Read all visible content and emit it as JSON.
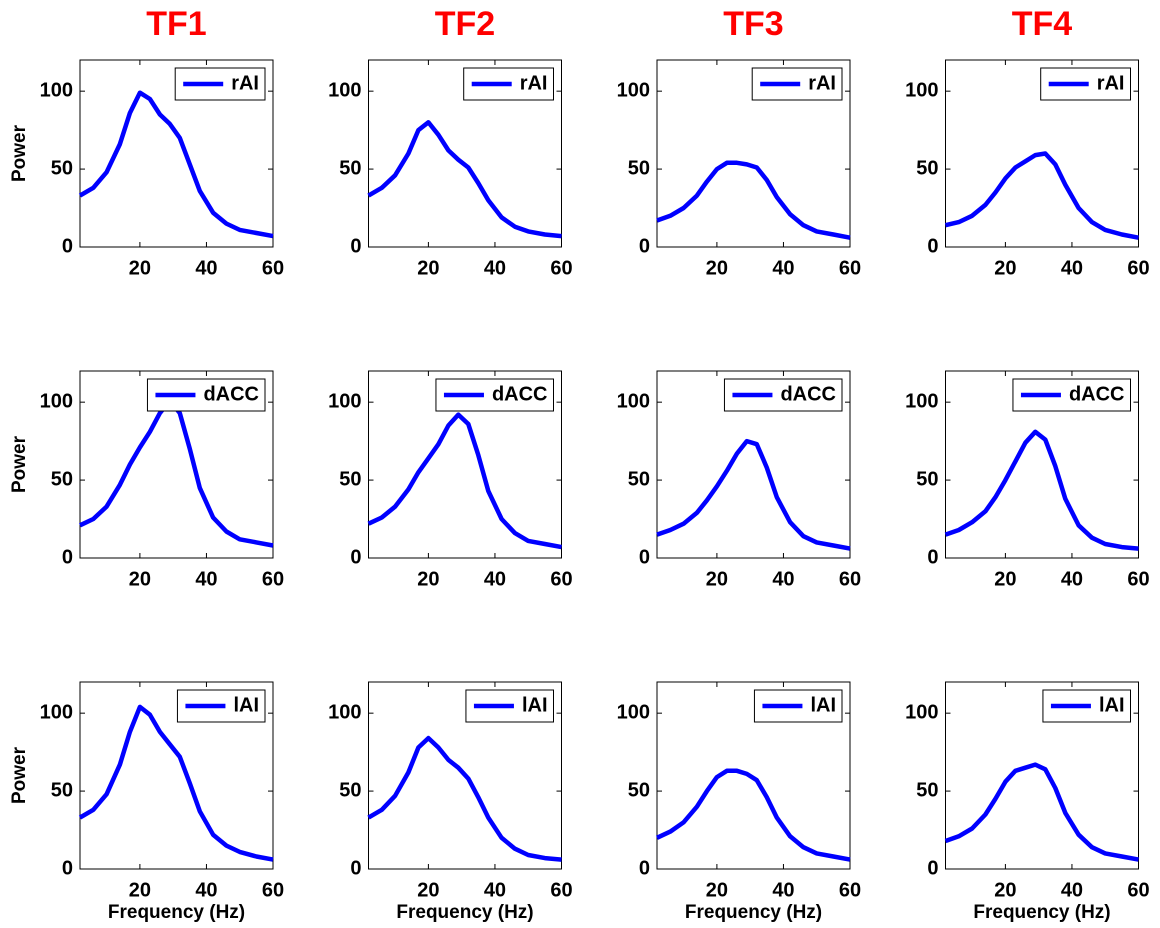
{
  "chart_data": [
    {
      "type": "line",
      "title": "TF1",
      "ylabel": "Power",
      "x": [
        2,
        6,
        10,
        14,
        17,
        20,
        23,
        26,
        29,
        32,
        35,
        38,
        42,
        46,
        50,
        55,
        60
      ],
      "series": [
        {
          "name": "rAI",
          "color": "#0000ff",
          "values": [
            33,
            38,
            48,
            66,
            86,
            99,
            95,
            85,
            79,
            70,
            53,
            36,
            22,
            15,
            11,
            9,
            7
          ]
        }
      ],
      "xlim": [
        2,
        60
      ],
      "xticks": [
        20,
        40,
        60
      ],
      "ylim": [
        0,
        120
      ],
      "yticks": [
        0,
        50,
        100
      ],
      "legend": "upper right",
      "grid": false
    },
    {
      "type": "line",
      "title": "TF2",
      "x": [
        2,
        6,
        10,
        14,
        17,
        20,
        23,
        26,
        29,
        32,
        35,
        38,
        42,
        46,
        50,
        55,
        60
      ],
      "series": [
        {
          "name": "rAI",
          "color": "#0000ff",
          "values": [
            33,
            38,
            46,
            60,
            75,
            80,
            72,
            62,
            56,
            51,
            41,
            30,
            19,
            13,
            10,
            8,
            7
          ]
        }
      ],
      "xlim": [
        2,
        60
      ],
      "xticks": [
        20,
        40,
        60
      ],
      "ylim": [
        0,
        120
      ],
      "yticks": [
        0,
        50,
        100
      ],
      "legend": "upper right",
      "grid": false
    },
    {
      "type": "line",
      "title": "TF3",
      "x": [
        2,
        6,
        10,
        14,
        17,
        20,
        23,
        26,
        29,
        32,
        35,
        38,
        42,
        46,
        50,
        55,
        60
      ],
      "series": [
        {
          "name": "rAI",
          "color": "#0000ff",
          "values": [
            17,
            20,
            25,
            33,
            42,
            50,
            54,
            54,
            53,
            51,
            43,
            32,
            21,
            14,
            10,
            8,
            6
          ]
        }
      ],
      "xlim": [
        2,
        60
      ],
      "xticks": [
        20,
        40,
        60
      ],
      "ylim": [
        0,
        120
      ],
      "yticks": [
        0,
        50,
        100
      ],
      "legend": "upper right",
      "grid": false
    },
    {
      "type": "line",
      "title": "TF4",
      "x": [
        2,
        6,
        10,
        14,
        17,
        20,
        23,
        26,
        29,
        32,
        35,
        38,
        42,
        46,
        50,
        55,
        60
      ],
      "series": [
        {
          "name": "rAI",
          "color": "#0000ff",
          "values": [
            14,
            16,
            20,
            27,
            35,
            44,
            51,
            55,
            59,
            60,
            53,
            40,
            25,
            16,
            11,
            8,
            6
          ]
        }
      ],
      "xlim": [
        2,
        60
      ],
      "xticks": [
        20,
        40,
        60
      ],
      "ylim": [
        0,
        120
      ],
      "yticks": [
        0,
        50,
        100
      ],
      "legend": "upper right",
      "grid": false
    },
    {
      "type": "line",
      "ylabel": "Power",
      "x": [
        2,
        6,
        10,
        14,
        17,
        20,
        23,
        26,
        29,
        32,
        35,
        38,
        42,
        46,
        50,
        55,
        60
      ],
      "series": [
        {
          "name": "dACC",
          "color": "#0000ff",
          "values": [
            21,
            25,
            33,
            47,
            60,
            71,
            81,
            93,
            101,
            93,
            70,
            45,
            26,
            17,
            12,
            10,
            8
          ]
        }
      ],
      "xlim": [
        2,
        60
      ],
      "xticks": [
        20,
        40,
        60
      ],
      "ylim": [
        0,
        120
      ],
      "yticks": [
        0,
        50,
        100
      ],
      "legend": "upper right",
      "grid": false
    },
    {
      "type": "line",
      "x": [
        2,
        6,
        10,
        14,
        17,
        20,
        23,
        26,
        29,
        32,
        35,
        38,
        42,
        46,
        50,
        55,
        60
      ],
      "series": [
        {
          "name": "dACC",
          "color": "#0000ff",
          "values": [
            22,
            26,
            33,
            44,
            55,
            64,
            73,
            85,
            92,
            86,
            66,
            43,
            25,
            16,
            11,
            9,
            7
          ]
        }
      ],
      "xlim": [
        2,
        60
      ],
      "xticks": [
        20,
        40,
        60
      ],
      "ylim": [
        0,
        120
      ],
      "yticks": [
        0,
        50,
        100
      ],
      "legend": "upper right",
      "grid": false
    },
    {
      "type": "line",
      "x": [
        2,
        6,
        10,
        14,
        17,
        20,
        23,
        26,
        29,
        32,
        35,
        38,
        42,
        46,
        50,
        55,
        60
      ],
      "series": [
        {
          "name": "dACC",
          "color": "#0000ff",
          "values": [
            15,
            18,
            22,
            29,
            37,
            46,
            56,
            67,
            75,
            73,
            58,
            39,
            23,
            14,
            10,
            8,
            6
          ]
        }
      ],
      "xlim": [
        2,
        60
      ],
      "xticks": [
        20,
        40,
        60
      ],
      "ylim": [
        0,
        120
      ],
      "yticks": [
        0,
        50,
        100
      ],
      "legend": "upper right",
      "grid": false
    },
    {
      "type": "line",
      "x": [
        2,
        6,
        10,
        14,
        17,
        20,
        23,
        26,
        29,
        32,
        35,
        38,
        42,
        46,
        50,
        55,
        60
      ],
      "series": [
        {
          "name": "dACC",
          "color": "#0000ff",
          "values": [
            15,
            18,
            23,
            30,
            39,
            50,
            62,
            74,
            81,
            76,
            59,
            38,
            21,
            13,
            9,
            7,
            6
          ]
        }
      ],
      "xlim": [
        2,
        60
      ],
      "xticks": [
        20,
        40,
        60
      ],
      "ylim": [
        0,
        120
      ],
      "yticks": [
        0,
        50,
        100
      ],
      "legend": "upper right",
      "grid": false
    },
    {
      "type": "line",
      "ylabel": "Power",
      "xlabel": "Frequency (Hz)",
      "x": [
        2,
        6,
        10,
        14,
        17,
        20,
        23,
        26,
        29,
        32,
        35,
        38,
        42,
        46,
        50,
        55,
        60
      ],
      "series": [
        {
          "name": "lAI",
          "color": "#0000ff",
          "values": [
            33,
            38,
            48,
            67,
            88,
            104,
            99,
            88,
            80,
            72,
            55,
            37,
            22,
            15,
            11,
            8,
            6
          ]
        }
      ],
      "xlim": [
        2,
        60
      ],
      "xticks": [
        20,
        40,
        60
      ],
      "ylim": [
        0,
        120
      ],
      "yticks": [
        0,
        50,
        100
      ],
      "legend": "upper right",
      "grid": false
    },
    {
      "type": "line",
      "xlabel": "Frequency (Hz)",
      "x": [
        2,
        6,
        10,
        14,
        17,
        20,
        23,
        26,
        29,
        32,
        35,
        38,
        42,
        46,
        50,
        55,
        60
      ],
      "series": [
        {
          "name": "lAI",
          "color": "#0000ff",
          "values": [
            33,
            38,
            47,
            62,
            78,
            84,
            78,
            70,
            65,
            58,
            46,
            33,
            20,
            13,
            9,
            7,
            6
          ]
        }
      ],
      "xlim": [
        2,
        60
      ],
      "xticks": [
        20,
        40,
        60
      ],
      "ylim": [
        0,
        120
      ],
      "yticks": [
        0,
        50,
        100
      ],
      "legend": "upper right",
      "grid": false
    },
    {
      "type": "line",
      "xlabel": "Frequency (Hz)",
      "x": [
        2,
        6,
        10,
        14,
        17,
        20,
        23,
        26,
        29,
        32,
        35,
        38,
        42,
        46,
        50,
        55,
        60
      ],
      "series": [
        {
          "name": "lAI",
          "color": "#0000ff",
          "values": [
            20,
            24,
            30,
            40,
            50,
            59,
            63,
            63,
            61,
            57,
            46,
            33,
            21,
            14,
            10,
            8,
            6
          ]
        }
      ],
      "xlim": [
        2,
        60
      ],
      "xticks": [
        20,
        40,
        60
      ],
      "ylim": [
        0,
        120
      ],
      "yticks": [
        0,
        50,
        100
      ],
      "legend": "upper right",
      "grid": false
    },
    {
      "type": "line",
      "xlabel": "Frequency (Hz)",
      "x": [
        2,
        6,
        10,
        14,
        17,
        20,
        23,
        26,
        29,
        32,
        35,
        38,
        42,
        46,
        50,
        55,
        60
      ],
      "series": [
        {
          "name": "lAI",
          "color": "#0000ff",
          "values": [
            18,
            21,
            26,
            35,
            45,
            56,
            63,
            65,
            67,
            64,
            52,
            36,
            22,
            14,
            10,
            8,
            6
          ]
        }
      ],
      "xlim": [
        2,
        60
      ],
      "xticks": [
        20,
        40,
        60
      ],
      "ylim": [
        0,
        120
      ],
      "yticks": [
        0,
        50,
        100
      ],
      "legend": "upper right",
      "grid": false
    }
  ]
}
